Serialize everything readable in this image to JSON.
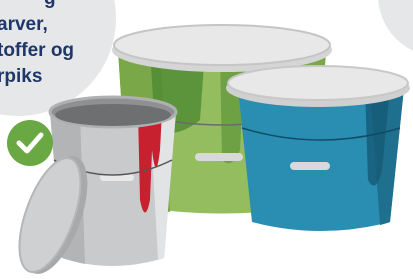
{
  "bubble": {
    "lines": [
      "g",
      "arver,",
      "toffer og",
      "rpiks"
    ]
  }
}
